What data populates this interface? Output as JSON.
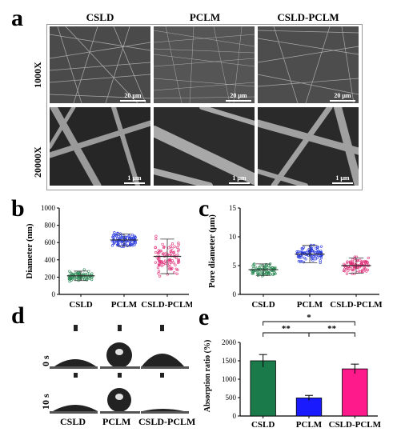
{
  "panel_a": {
    "label": "a",
    "columns": [
      "CSLD",
      "PCLM",
      "CSLD-PCLM"
    ],
    "rows": [
      "1000X",
      "20000X"
    ],
    "scalebars": {
      "row1": "20 μm",
      "row2": "1 μm"
    }
  },
  "panel_b": {
    "label": "b",
    "chart_data": {
      "type": "scatter",
      "ylabel": "Diameter (nm)",
      "categories": [
        "CSLD",
        "PCLM",
        "CSLD-PCLM"
      ],
      "ylim": [
        0,
        1000
      ],
      "yticks": [
        "0",
        "200",
        "400",
        "600",
        "800",
        "1000"
      ],
      "means": [
        215,
        630,
        440
      ],
      "sd": [
        55,
        70,
        200
      ],
      "colors": [
        "#2e8b57",
        "#2233dd",
        "#e0307a"
      ]
    }
  },
  "panel_c": {
    "label": "c",
    "chart_data": {
      "type": "scatter",
      "ylabel": "Pore diameter (μm)",
      "categories": [
        "CSLD",
        "PCLM",
        "CSLD-PCLM"
      ],
      "ylim": [
        0,
        15
      ],
      "yticks": [
        "0",
        "5",
        "10",
        "15"
      ],
      "means": [
        4.3,
        7.0,
        5.0
      ],
      "sd": [
        1.0,
        1.5,
        1.3
      ],
      "colors": [
        "#2e8b57",
        "#2233dd",
        "#e0307a"
      ]
    }
  },
  "panel_d": {
    "label": "d",
    "rows": [
      "0 s",
      "10 s"
    ],
    "columns": [
      "CSLD",
      "PCLM",
      "CSLD-PCLM"
    ]
  },
  "panel_e": {
    "label": "e",
    "chart_data": {
      "type": "bar",
      "ylabel": "Absorption ratio (%)",
      "categories": [
        "CSLD",
        "PCLM",
        "CSLD-PCLM"
      ],
      "values": [
        1500,
        490,
        1280
      ],
      "errors": [
        170,
        70,
        130
      ],
      "ylim": [
        0,
        2000
      ],
      "yticks": [
        "0",
        "500",
        "1000",
        "1500",
        "2000"
      ],
      "colors": [
        "#1a7a4a",
        "#1a1aff",
        "#ff1a8c"
      ],
      "significance": [
        {
          "from": "CSLD",
          "to": "PCLM",
          "label": "**"
        },
        {
          "from": "PCLM",
          "to": "CSLD-PCLM",
          "label": "**"
        },
        {
          "from": "CSLD",
          "to": "CSLD-PCLM",
          "label": "*"
        }
      ]
    }
  }
}
